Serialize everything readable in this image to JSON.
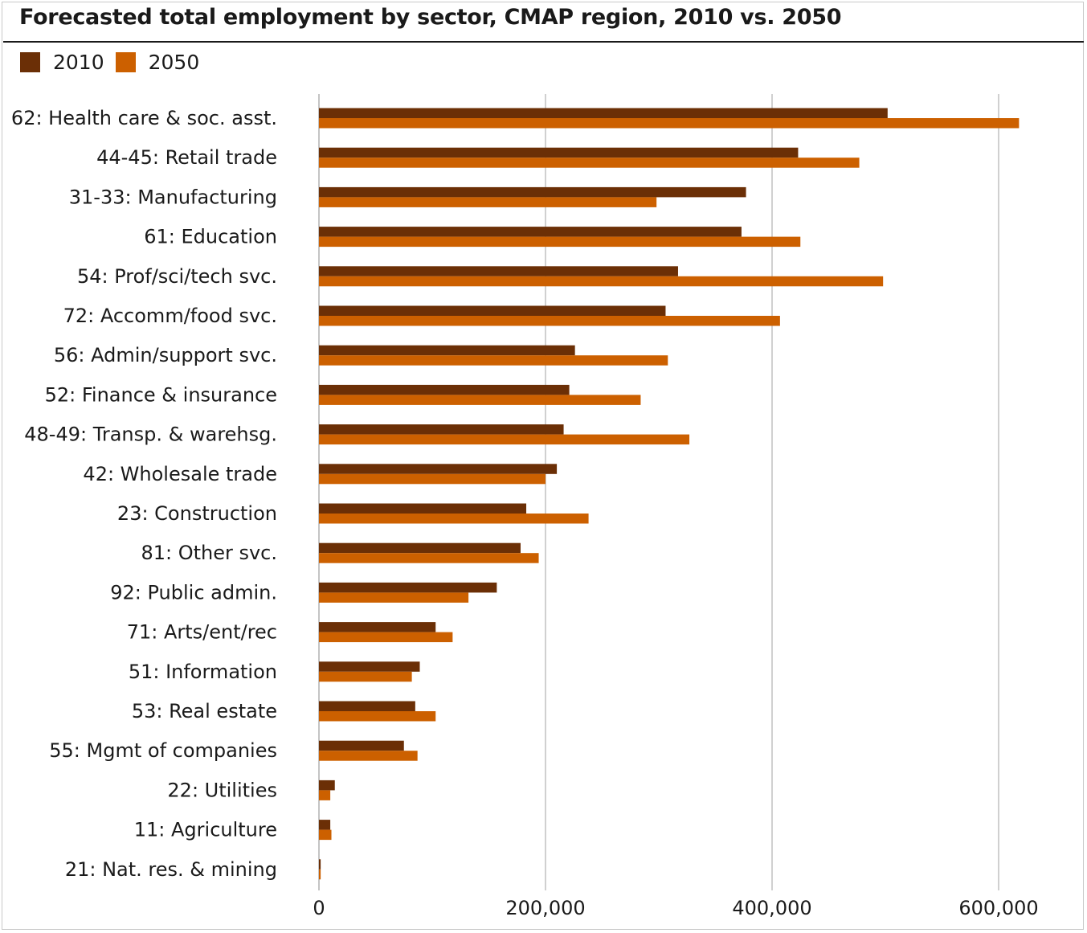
{
  "title": "Forecasted total employment by sector, CMAP region, 2010 vs. 2050",
  "colors": {
    "series_2010": "#6b2f06",
    "series_2050": "#cc6000",
    "gridline": "#a0a0a0",
    "text": "#1a1a1a"
  },
  "legend": [
    {
      "label": "2010",
      "color": "#6b2f06"
    },
    {
      "label": "2050",
      "color": "#cc6000"
    }
  ],
  "chart_data": {
    "type": "bar",
    "orientation": "horizontal",
    "categories": [
      "62: Health care & soc. asst.",
      "44-45: Retail trade",
      "31-33: Manufacturing",
      "61: Education",
      "54: Prof/sci/tech svc.",
      "72: Accomm/food svc.",
      "56: Admin/support svc.",
      "52: Finance & insurance",
      "48-49: Transp. & warehsg.",
      "42: Wholesale trade",
      "23: Construction",
      "81: Other svc.",
      "92: Public admin.",
      "71: Arts/ent/rec",
      "51: Information",
      "53: Real estate",
      "55: Mgmt of companies",
      "22: Utilities",
      "11: Agriculture",
      "21: Nat. res. & mining"
    ],
    "series": [
      {
        "name": "2010",
        "values": [
          502000,
          423000,
          377000,
          373000,
          317000,
          306000,
          226000,
          221000,
          216000,
          210000,
          183000,
          178000,
          157000,
          103000,
          89000,
          85000,
          75000,
          14000,
          10000,
          1500
        ]
      },
      {
        "name": "2050",
        "values": [
          618000,
          477000,
          298000,
          425000,
          498000,
          407000,
          308000,
          284000,
          327000,
          200000,
          238000,
          194000,
          132000,
          118000,
          82000,
          103000,
          87000,
          10000,
          11000,
          1500
        ]
      }
    ],
    "xlim": [
      0,
      650000
    ],
    "xticks": [
      0,
      200000,
      400000,
      600000
    ],
    "xtick_labels": [
      "0",
      "200,000",
      "400,000",
      "600,000"
    ],
    "grid": "vertical",
    "legend_position": "top-left"
  }
}
